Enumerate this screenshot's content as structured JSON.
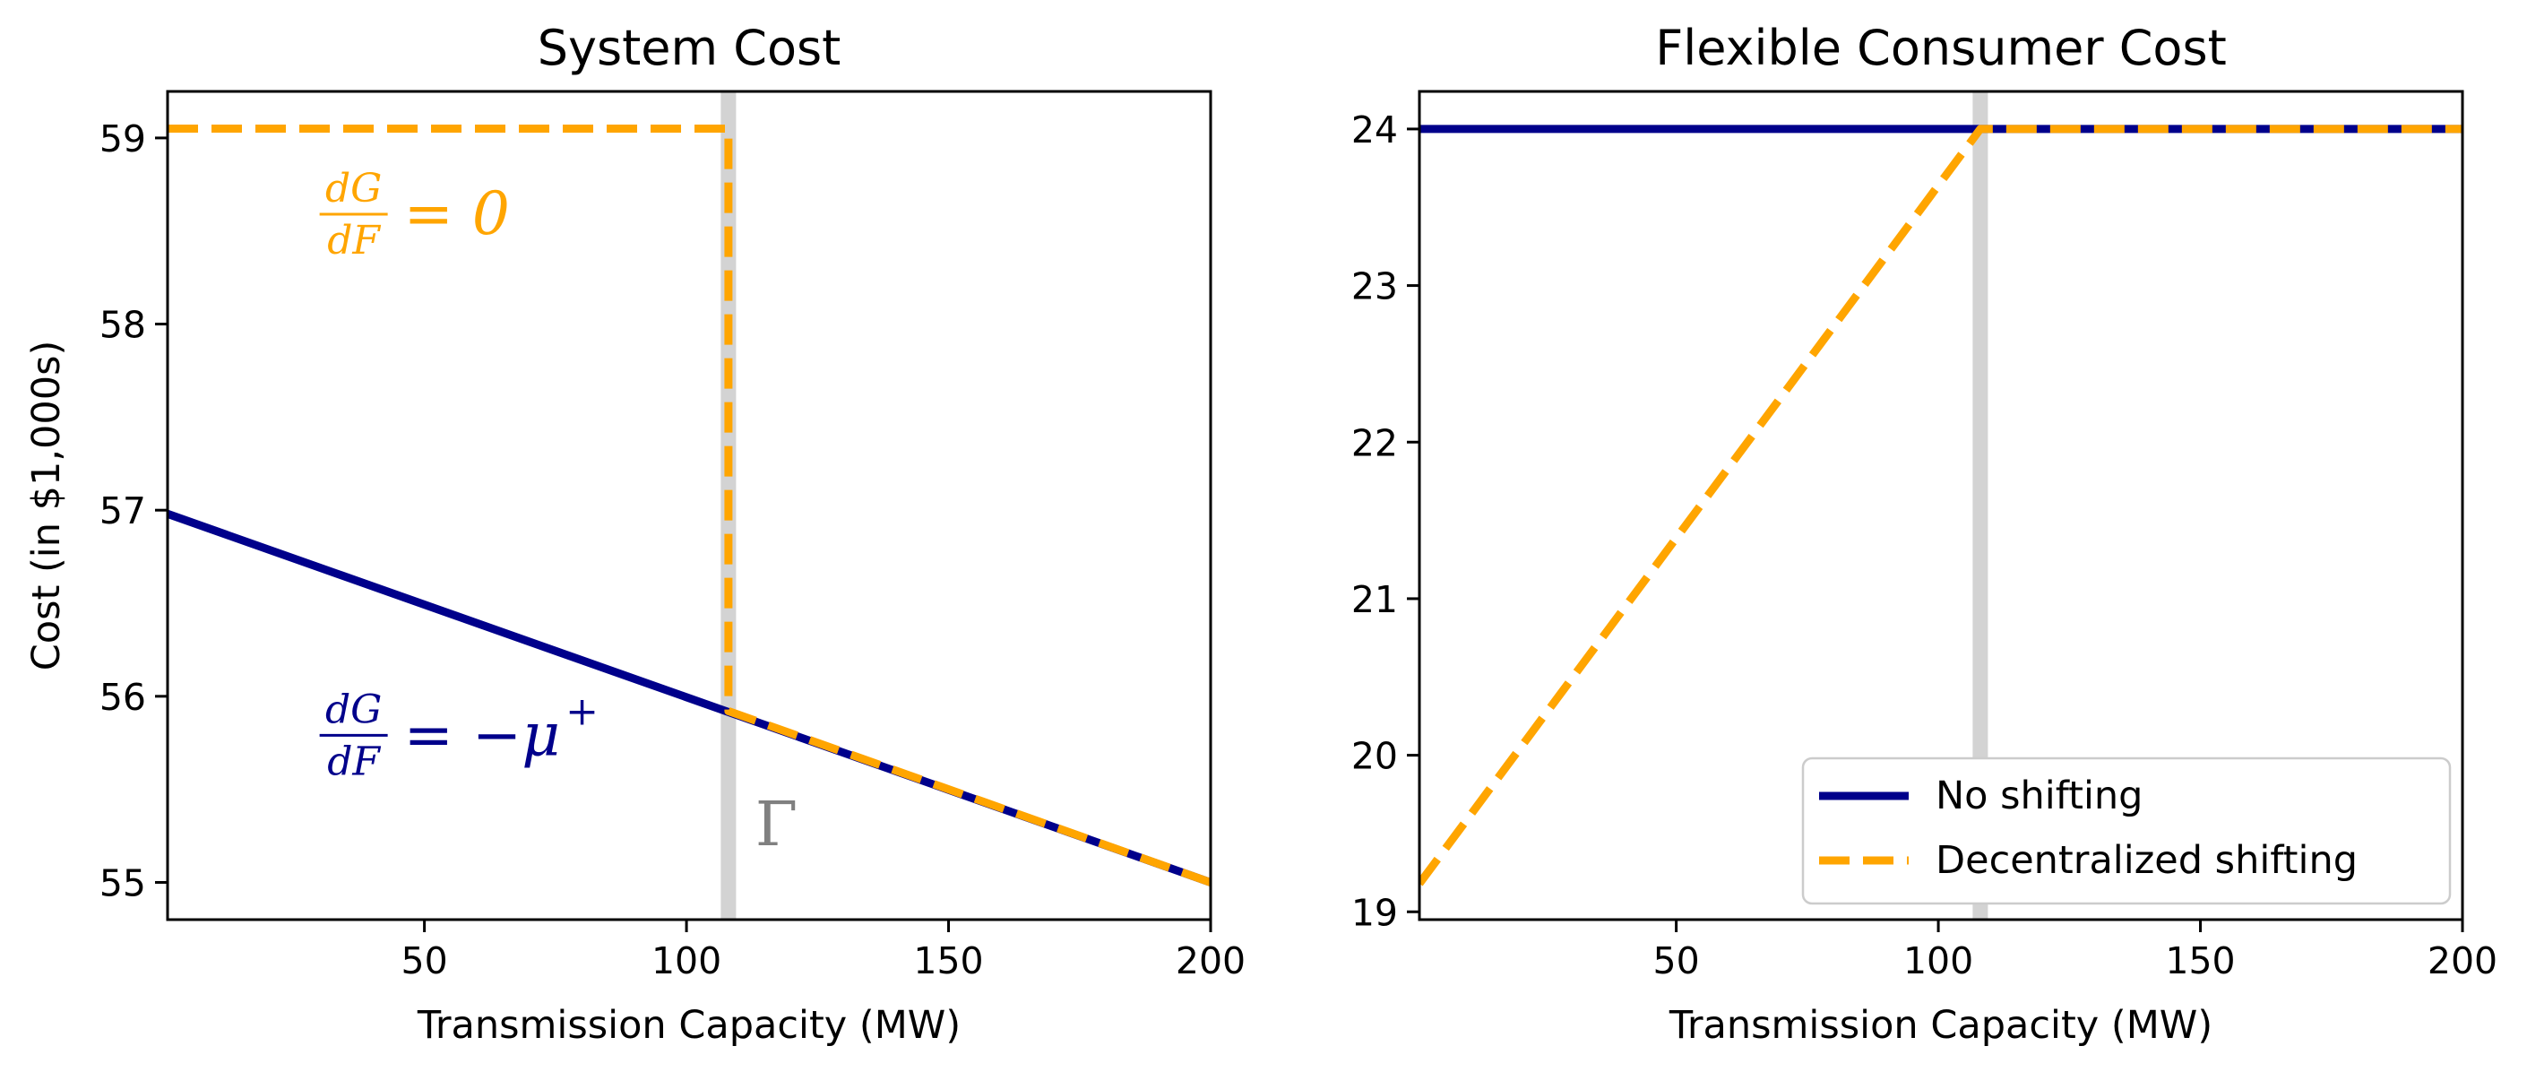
{
  "chart_data": [
    {
      "type": "line",
      "title": "System Cost",
      "xlabel": "Transmission Capacity (MW)",
      "ylabel": "Cost (in $1,000s)",
      "xlim": [
        1,
        200
      ],
      "ylim": [
        54.8,
        59.25
      ],
      "xticks": [
        50,
        100,
        150,
        200
      ],
      "yticks": [
        55,
        56,
        57,
        58,
        59
      ],
      "vline": {
        "x": 108,
        "label": "Γ"
      },
      "series": [
        {
          "name": "No shifting",
          "color": "#00008b",
          "style": "solid",
          "x": [
            1,
            200
          ],
          "y": [
            56.98,
            55.0
          ]
        },
        {
          "name": "Decentralized shifting",
          "color": "#ffa500",
          "style": "dashed",
          "x": [
            1,
            108,
            108,
            200
          ],
          "y": [
            59.05,
            59.05,
            55.92,
            55.0
          ]
        }
      ],
      "annotations": [
        {
          "num": "dG",
          "den": "dF",
          "rhs": "= 0",
          "color": "#ffa500",
          "x": 30,
          "y": 58.59
        },
        {
          "num": "dG",
          "den": "dF",
          "rhs": "= −μ",
          "sup": "+",
          "color": "#00008b",
          "x": 30,
          "y": 55.79
        }
      ]
    },
    {
      "type": "line",
      "title": "Flexible Consumer Cost",
      "xlabel": "Transmission Capacity (MW)",
      "ylabel": "",
      "xlim": [
        1,
        200
      ],
      "ylim": [
        18.95,
        24.24
      ],
      "xticks": [
        50,
        100,
        150,
        200
      ],
      "yticks": [
        19,
        20,
        21,
        22,
        23,
        24
      ],
      "vline": {
        "x": 108
      },
      "series": [
        {
          "name": "No shifting",
          "color": "#00008b",
          "style": "solid",
          "x": [
            1,
            200
          ],
          "y": [
            24.0,
            24.0
          ]
        },
        {
          "name": "Decentralized shifting",
          "color": "#ffa500",
          "style": "dashed",
          "x": [
            1,
            108,
            200
          ],
          "y": [
            19.18,
            24.0,
            24.0
          ]
        }
      ],
      "legend": {
        "position": "lower-right",
        "entries": [
          "No shifting",
          "Decentralized shifting"
        ]
      }
    }
  ]
}
